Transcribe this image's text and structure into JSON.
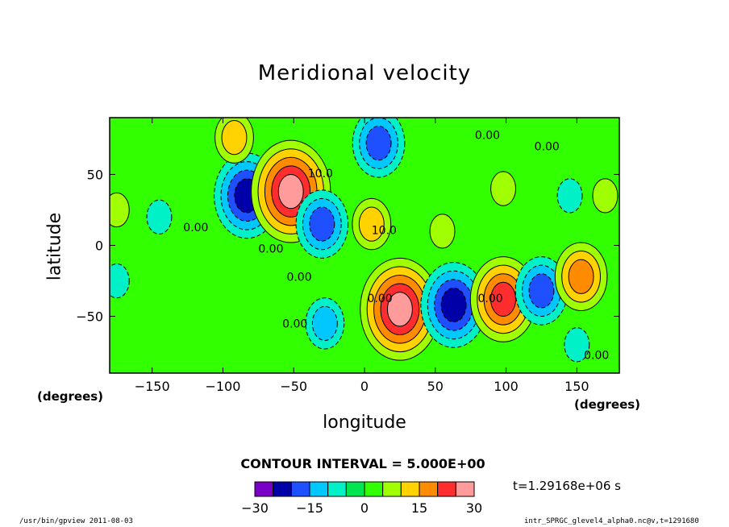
{
  "chart_data": {
    "type": "heatmap",
    "title": "Meridional velocity",
    "xlabel": "longitude",
    "ylabel": "latitude",
    "x_unit": "(degrees)",
    "y_unit": "(degrees)",
    "xlim": [
      -180,
      180
    ],
    "ylim": [
      -90,
      90
    ],
    "xticks": [
      -150,
      -100,
      -50,
      0,
      50,
      100,
      150
    ],
    "yticks": [
      -50,
      0,
      50
    ],
    "contour_interval_label": "CONTOUR INTERVAL = 5.000E+00",
    "contour_labels": [
      "0.00",
      "10.0"
    ],
    "time_label": "t=1.29168e+06 s",
    "colorbar": {
      "ticks": [
        -30,
        -15,
        0,
        15,
        30
      ],
      "levels": [
        -30,
        -25,
        -20,
        -15,
        -10,
        -5,
        0,
        5,
        10,
        15,
        20,
        25,
        30
      ],
      "colors": [
        "#7a00c8",
        "#0000a8",
        "#1e50ff",
        "#00c8ff",
        "#00f0c8",
        "#00e650",
        "#32ff00",
        "#a0ff00",
        "#ffd200",
        "#ff8c00",
        "#ff2d2d",
        "#ff9b9b"
      ]
    },
    "field_features": [
      {
        "lon": -83,
        "lat": 35,
        "value": -22
      },
      {
        "lon": -52,
        "lat": 38,
        "value": 26
      },
      {
        "lon": -30,
        "lat": 15,
        "value": -18
      },
      {
        "lon": 5,
        "lat": 15,
        "value": 14
      },
      {
        "lon": 10,
        "lat": 72,
        "value": -16
      },
      {
        "lon": -92,
        "lat": 76,
        "value": 12
      },
      {
        "lon": 25,
        "lat": -45,
        "value": 25
      },
      {
        "lon": 63,
        "lat": -42,
        "value": -22
      },
      {
        "lon": 98,
        "lat": -38,
        "value": 20
      },
      {
        "lon": 125,
        "lat": -32,
        "value": -18
      },
      {
        "lon": 153,
        "lat": -22,
        "value": 16
      },
      {
        "lon": -28,
        "lat": -55,
        "value": -12
      },
      {
        "lon": 55,
        "lat": 10,
        "value": 8
      },
      {
        "lon": -175,
        "lat": 25,
        "value": 9
      },
      {
        "lon": -145,
        "lat": 20,
        "value": -7
      },
      {
        "lon": 145,
        "lat": 35,
        "value": -8
      },
      {
        "lon": 170,
        "lat": 35,
        "value": 7
      },
      {
        "lon": 98,
        "lat": 40,
        "value": 6
      },
      {
        "lon": -175,
        "lat": -25,
        "value": -6
      },
      {
        "lon": 150,
        "lat": -70,
        "value": -6
      },
      {
        "lon": 75,
        "lat": 80,
        "value": 4
      }
    ]
  },
  "footer": {
    "left": "/usr/bin/gpview  2011-08-03",
    "right": "intr_SPRGC_glevel4_alpha0.nc@v,t=1291680"
  }
}
